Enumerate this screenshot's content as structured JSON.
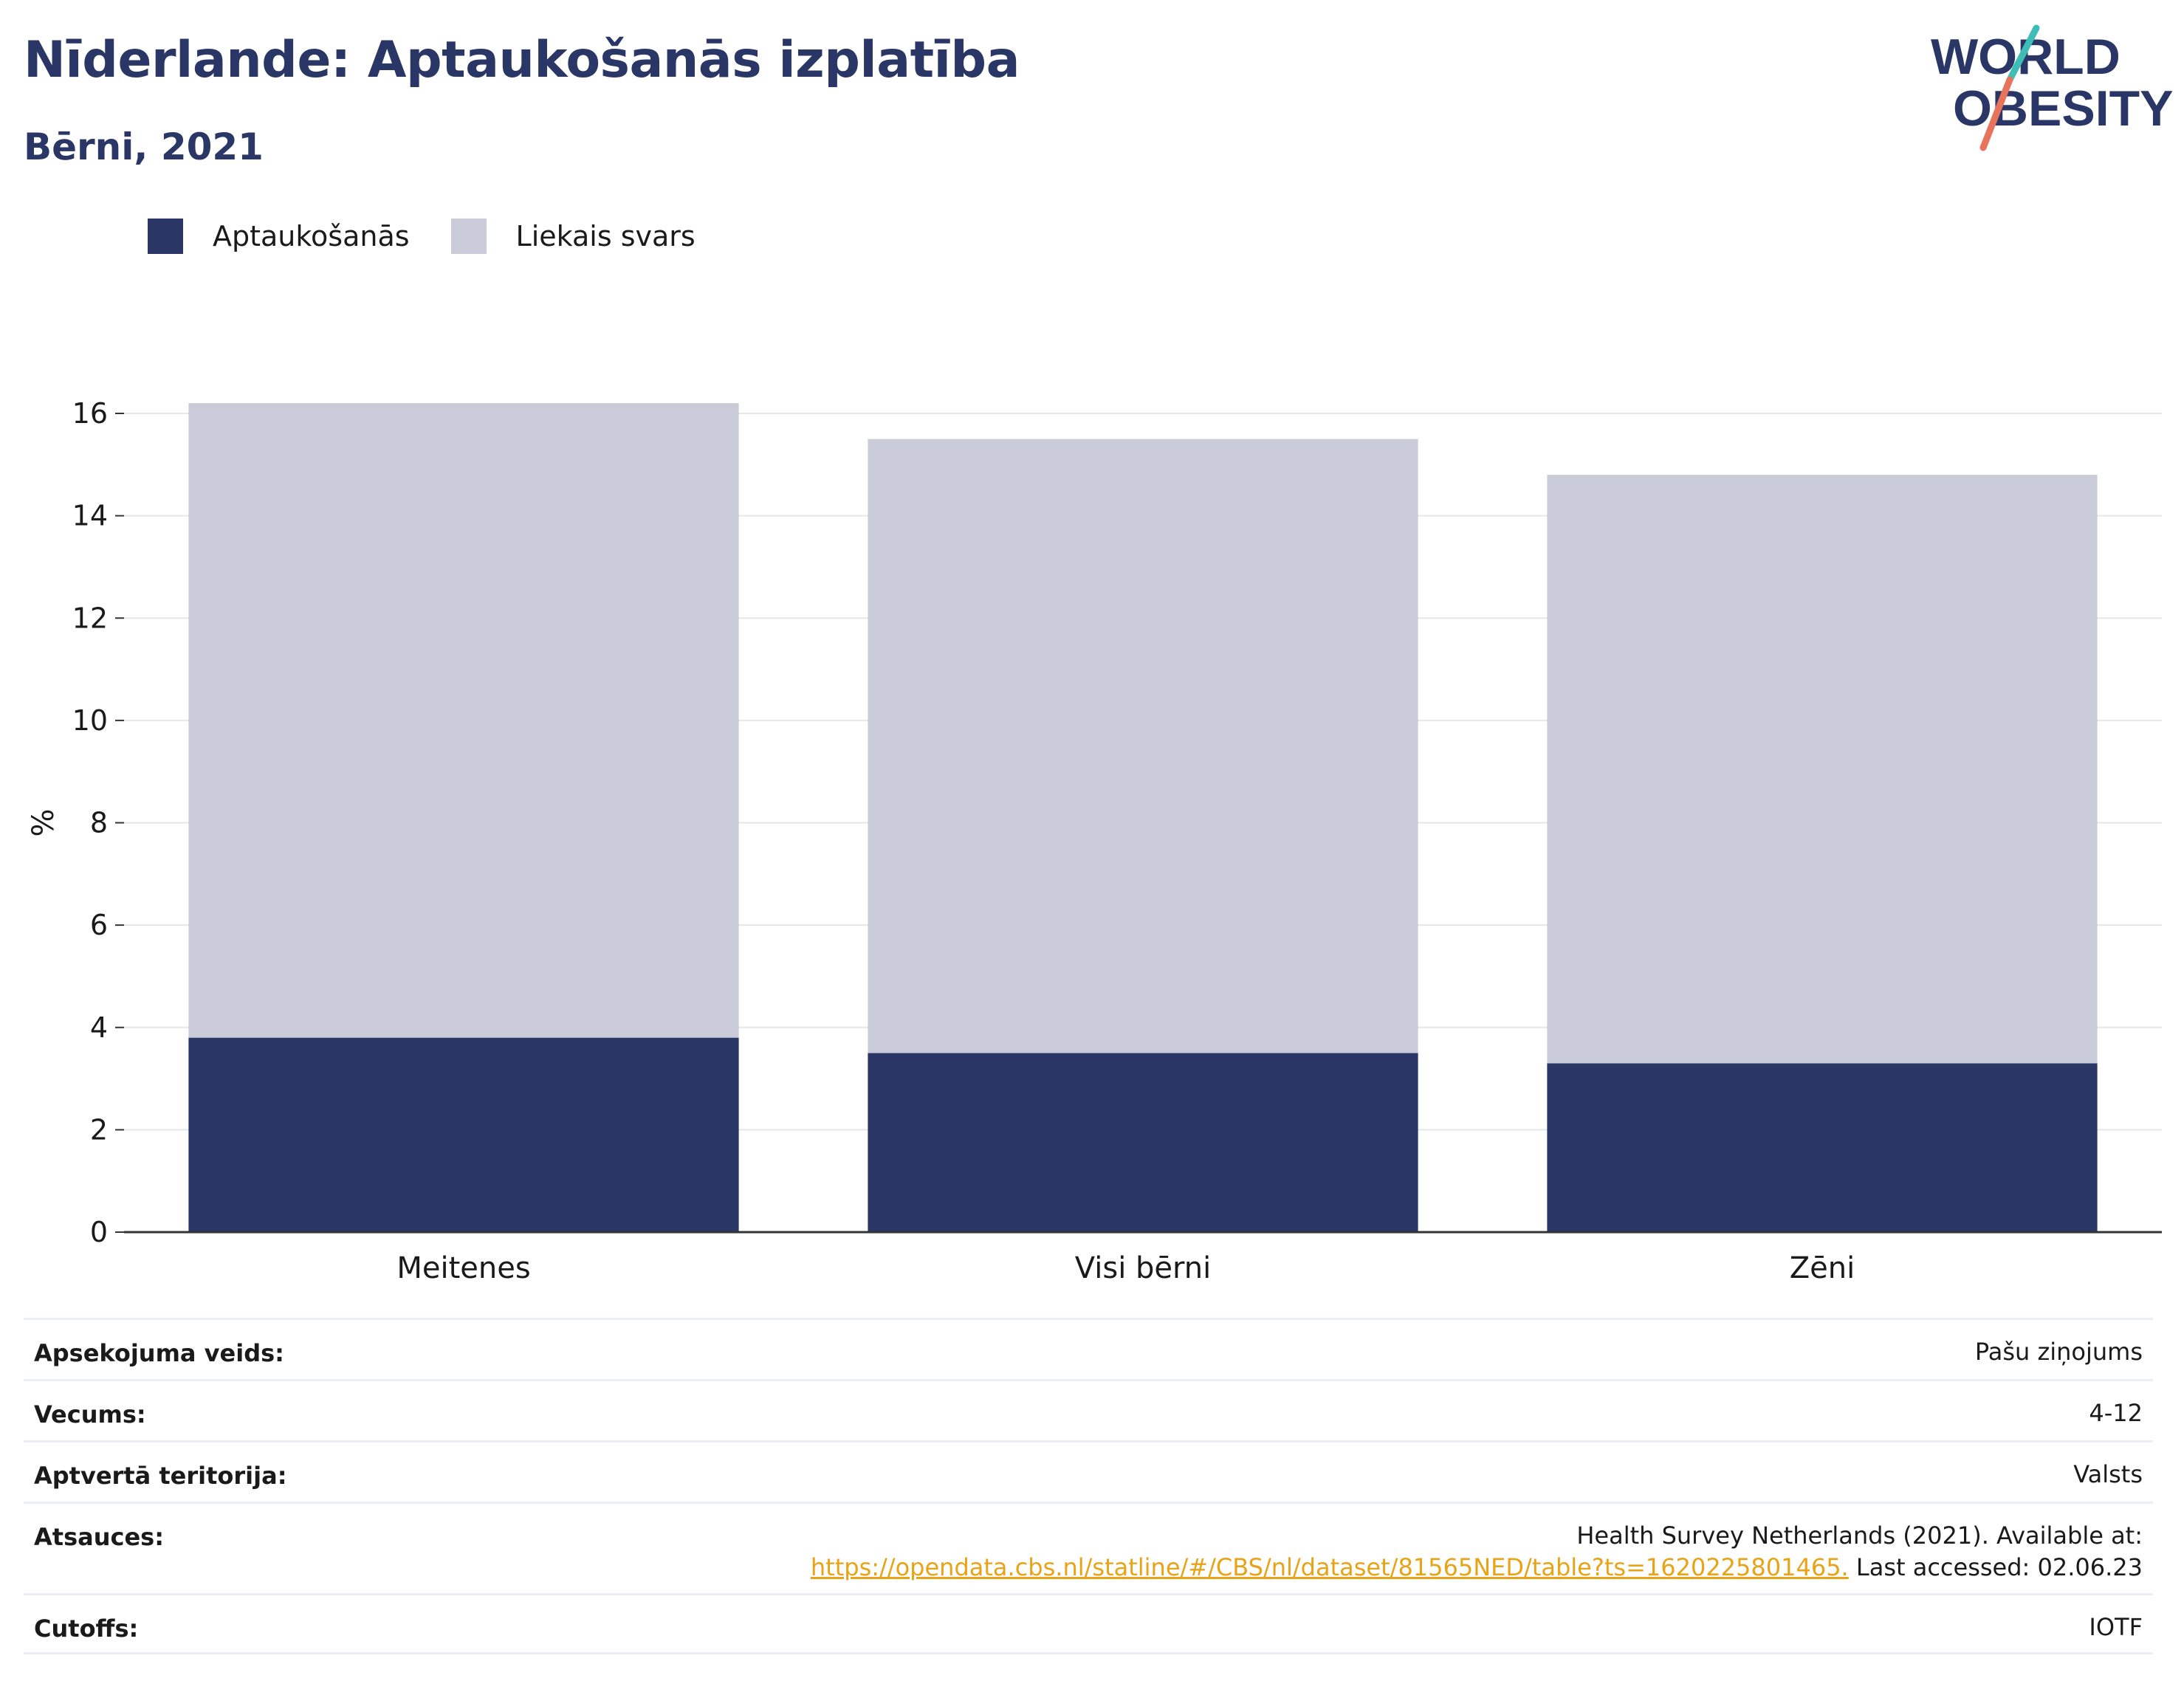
{
  "header": {
    "title": "Nīderlande: Aptaukošanās izplatība",
    "subtitle": "Bērni, 2021"
  },
  "logo": {
    "line1": "WORLD",
    "line2": "OBESITY",
    "colors": {
      "text": "#2a3766",
      "slash_top": "#3dbdb5",
      "slash_bottom": "#e8735c"
    }
  },
  "legend": {
    "items": [
      {
        "label": "Aptaukošanās",
        "color": "#2a3766"
      },
      {
        "label": "Liekais svars",
        "color": "#c9ccd8"
      }
    ]
  },
  "chart_data": {
    "type": "bar",
    "stacked": true,
    "categories": [
      "Meitenes",
      "Visi bērni",
      "Zēni"
    ],
    "series": [
      {
        "name": "Aptaukošanās",
        "values": [
          3.8,
          3.5,
          3.3
        ],
        "color": "#2a3766"
      },
      {
        "name": "Liekais svars",
        "values": [
          12.4,
          12.0,
          11.5
        ],
        "color": "#c9ccd8"
      }
    ],
    "ylabel": "%",
    "ylim": [
      0,
      16
    ],
    "yticks": [
      0,
      2,
      4,
      6,
      8,
      10,
      12,
      14,
      16
    ],
    "grid": true,
    "legend_position": "top-left"
  },
  "info": {
    "rows": [
      {
        "key": "Apsekojuma veids:",
        "value": "Pašu ziņojums"
      },
      {
        "key": "Vecums:",
        "value": "4-12"
      },
      {
        "key": "Aptvertā teritorija:",
        "value": "Valsts"
      },
      {
        "key": "Atsauces:",
        "value_line1": "Health Survey Netherlands (2021). Available at:",
        "link": "https://opendata.cbs.nl/statline/#/CBS/nl/dataset/81565NED/table?ts=1620225801465.",
        "value_after_link": " Last accessed: 02.06.23"
      },
      {
        "key": "Cutoffs:",
        "value": "IOTF"
      }
    ]
  }
}
